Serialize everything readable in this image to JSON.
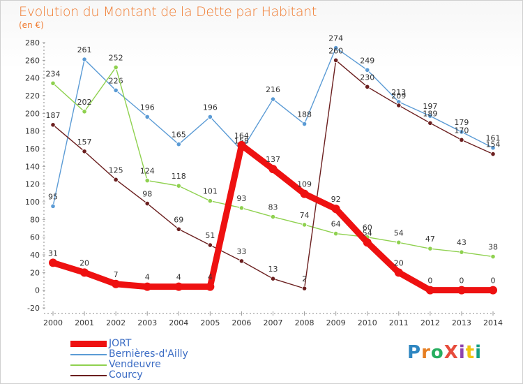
{
  "title": "Evolution du Montant de la Dette par Habitant",
  "unit_label": "(en €)",
  "logo": "ProXiti",
  "chart_data": {
    "type": "line",
    "title": "Evolution du Montant de la Dette par Habitant",
    "subtitle": "(en €)",
    "x": [
      "2000",
      "2001",
      "2002",
      "2003",
      "2004",
      "2005",
      "2006",
      "2007",
      "2008",
      "2009",
      "2010",
      "2011",
      "2012",
      "2013",
      "2014"
    ],
    "ylim": [
      -20,
      280
    ],
    "yticks": [
      -20,
      0,
      20,
      40,
      60,
      80,
      100,
      120,
      140,
      160,
      180,
      200,
      220,
      240,
      260,
      280
    ],
    "grid": false,
    "legend_position": "bottom-left",
    "series": [
      {
        "name": "JORT",
        "color": "#ee1111",
        "values": [
          31,
          20,
          7,
          4,
          4,
          4,
          164,
          137,
          109,
          92,
          54,
          20,
          0,
          0,
          0
        ]
      },
      {
        "name": "Bernières-d'Ailly",
        "color": "#5b9bd5",
        "values": [
          95,
          261,
          226,
          196,
          165,
          196,
          158,
          216,
          188,
          274,
          249,
          213,
          197,
          179,
          161
        ]
      },
      {
        "name": "Vendeuvre",
        "color": "#8fd14f",
        "values": [
          234,
          202,
          252,
          124,
          118,
          101,
          93,
          83,
          74,
          64,
          60,
          54,
          47,
          43,
          38
        ]
      },
      {
        "name": "Courcy",
        "color": "#6b1f1f",
        "values": [
          187,
          157,
          125,
          98,
          69,
          51,
          33,
          13,
          2,
          260,
          230,
          209,
          189,
          170,
          154
        ]
      }
    ]
  }
}
